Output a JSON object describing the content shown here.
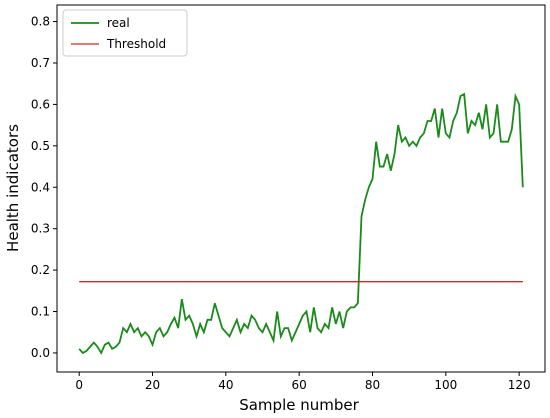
{
  "chart_data": {
    "type": "line",
    "xlabel": "Sample number",
    "ylabel": "Health indicators",
    "xlim": [
      -6.05,
      127.05
    ],
    "ylim": [
      -0.046,
      0.84
    ],
    "xticks": [
      0,
      20,
      40,
      60,
      80,
      100,
      120
    ],
    "yticks": [
      {
        "value": 0,
        "label": "0.0"
      },
      0.1,
      0.2,
      0.3,
      0.4,
      0.5,
      0.6,
      0.7,
      0.8
    ],
    "legend": "upper left",
    "series": [
      {
        "name": "real",
        "color": "#1a8a1a",
        "x": [
          0,
          1,
          2,
          3,
          4,
          5,
          6,
          7,
          8,
          9,
          10,
          11,
          12,
          13,
          14,
          15,
          16,
          17,
          18,
          19,
          20,
          21,
          22,
          23,
          24,
          25,
          26,
          27,
          28,
          29,
          30,
          31,
          32,
          33,
          34,
          35,
          36,
          37,
          38,
          39,
          40,
          41,
          42,
          43,
          44,
          45,
          46,
          47,
          48,
          49,
          50,
          51,
          52,
          53,
          54,
          55,
          56,
          57,
          58,
          59,
          60,
          61,
          62,
          63,
          64,
          65,
          66,
          67,
          68,
          69,
          70,
          71,
          72,
          73,
          74,
          75,
          76,
          77,
          78,
          79,
          80,
          81,
          82,
          83,
          84,
          85,
          86,
          87,
          88,
          89,
          90,
          91,
          92,
          93,
          94,
          95,
          96,
          97,
          98,
          99,
          100,
          101,
          102,
          103,
          104,
          105,
          106,
          107,
          108,
          109,
          110,
          111,
          112,
          113,
          114,
          115,
          116,
          117,
          118,
          119,
          120,
          121
        ],
        "values": [
          0.01,
          0.0,
          0.005,
          0.015,
          0.025,
          0.015,
          0.0,
          0.02,
          0.025,
          0.01,
          0.015,
          0.025,
          0.06,
          0.05,
          0.07,
          0.05,
          0.06,
          0.04,
          0.05,
          0.04,
          0.02,
          0.05,
          0.06,
          0.04,
          0.05,
          0.07,
          0.085,
          0.06,
          0.13,
          0.08,
          0.09,
          0.07,
          0.04,
          0.07,
          0.05,
          0.08,
          0.08,
          0.12,
          0.09,
          0.06,
          0.05,
          0.04,
          0.06,
          0.08,
          0.05,
          0.07,
          0.06,
          0.09,
          0.08,
          0.06,
          0.05,
          0.07,
          0.05,
          0.03,
          0.1,
          0.04,
          0.06,
          0.06,
          0.03,
          0.05,
          0.07,
          0.09,
          0.1,
          0.05,
          0.11,
          0.06,
          0.05,
          0.07,
          0.06,
          0.11,
          0.07,
          0.1,
          0.06,
          0.1,
          0.11,
          0.11,
          0.12,
          0.33,
          0.37,
          0.4,
          0.42,
          0.51,
          0.45,
          0.45,
          0.48,
          0.44,
          0.48,
          0.55,
          0.51,
          0.52,
          0.5,
          0.51,
          0.5,
          0.52,
          0.53,
          0.56,
          0.56,
          0.59,
          0.52,
          0.59,
          0.53,
          0.52,
          0.56,
          0.58,
          0.62,
          0.625,
          0.53,
          0.56,
          0.55,
          0.58,
          0.54,
          0.6,
          0.52,
          0.53,
          0.6,
          0.51,
          0.51,
          0.51,
          0.54,
          0.62,
          0.6,
          0.4
        ]
      },
      {
        "name": "Threshold",
        "color": "#d62728",
        "x": [
          0,
          121
        ],
        "values": [
          0.172,
          0.172
        ]
      }
    ]
  }
}
